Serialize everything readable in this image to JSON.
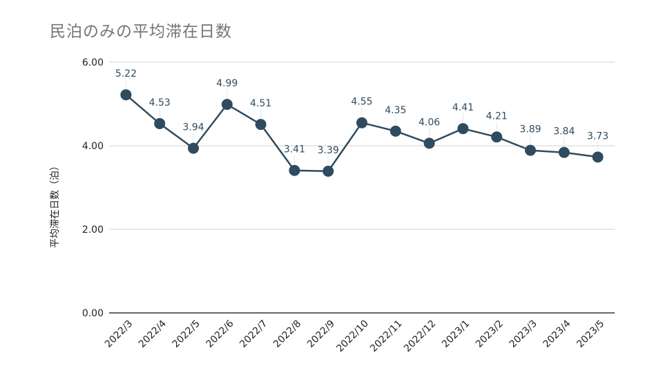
{
  "chart_data": {
    "type": "line",
    "title": "民泊のみの平均滞在日数",
    "xlabel": "",
    "ylabel": "平均滞在日数（泊）",
    "categories": [
      "2022/3",
      "2022/4",
      "2022/5",
      "2022/6",
      "2022/7",
      "2022/8",
      "2022/9",
      "2022/10",
      "2022/11",
      "2022/12",
      "2023/1",
      "2023/2",
      "2023/3",
      "2023/4",
      "2023/5"
    ],
    "series": [
      {
        "values": [
          5.22,
          4.53,
          3.94,
          4.99,
          4.51,
          3.41,
          3.39,
          4.55,
          4.35,
          4.06,
          4.41,
          4.21,
          3.89,
          3.84,
          3.73
        ]
      }
    ],
    "value_labels": [
      "5.22",
      "4.53",
      "3.94",
      "4.99",
      "4.51",
      "3.41",
      "3.39",
      "4.55",
      "4.35",
      "4.06",
      "4.41",
      "4.21",
      "3.89",
      "3.84",
      "3.73"
    ],
    "y_ticks": [
      "0.00",
      "2.00",
      "4.00",
      "6.00"
    ],
    "y_tick_values": [
      0,
      2,
      4,
      6
    ],
    "ylim": [
      0,
      6
    ],
    "grid": true,
    "legend": "none",
    "colors": {
      "line": "#2f4b5f",
      "marker": "#2f4b5f",
      "grid": "#d0d0d0",
      "axis": "#333333",
      "title": "#757575"
    }
  }
}
